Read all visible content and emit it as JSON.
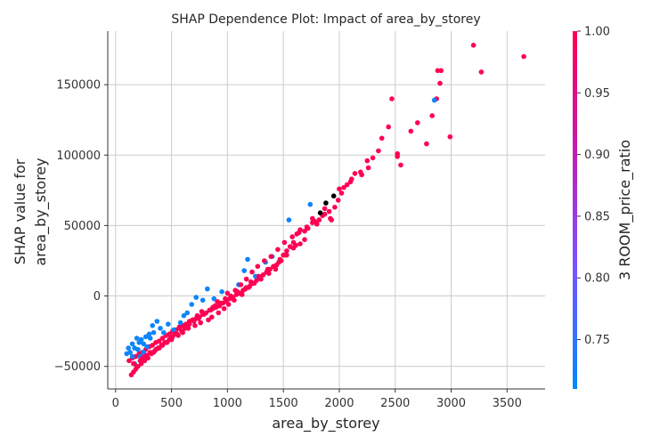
{
  "chart_data": {
    "type": "scatter",
    "title": "SHAP Dependence Plot: Impact of area_by_storey",
    "xlabel": "area_by_storey",
    "ylabel_lines": [
      "SHAP value for",
      "area_by_storey"
    ],
    "xlim": [
      -70,
      3840
    ],
    "ylim": [
      -66000,
      188000
    ],
    "xticks": [
      0,
      500,
      1000,
      1500,
      2000,
      2500,
      3000,
      3500
    ],
    "yticks": [
      -50000,
      0,
      50000,
      100000,
      150000
    ],
    "ytick_labels": [
      "−50000",
      "0",
      "50000",
      "100000",
      "150000"
    ],
    "grid": true,
    "colorbar": {
      "label": "3 ROOM_price_ratio",
      "range": [
        0.71,
        1.0
      ],
      "ticks": [
        0.75,
        0.8,
        0.85,
        0.9,
        0.95,
        1.0
      ],
      "tick_labels": [
        "0.75",
        "0.80",
        "0.85",
        "0.90",
        "0.95",
        "1.00"
      ],
      "colors": [
        "#008afb",
        "#7c52ff",
        "#c61ab0",
        "#ff0052"
      ]
    },
    "x": [
      3650,
      3200,
      3270,
      2880,
      2910,
      2900,
      2870,
      2830,
      2990,
      2780,
      2700,
      2640,
      2520,
      2470,
      2440,
      2380,
      2520,
      2550,
      2350,
      2300,
      2260,
      2190,
      2140,
      2110,
      2070,
      2040,
      2020,
      1990,
      1960,
      1920,
      1870,
      1820,
      1800,
      1760,
      1720,
      1690,
      1650,
      1620,
      1590,
      1560,
      1530,
      1500,
      1470,
      1440,
      1410,
      1380,
      1350,
      1320,
      1290,
      1260,
      1230,
      1200,
      1170,
      1140,
      1110,
      1080,
      1050,
      1020,
      990,
      960,
      930,
      900,
      870,
      840,
      810,
      780,
      750,
      720,
      690,
      660,
      630,
      600,
      570,
      540,
      510,
      480,
      450,
      420,
      390,
      360,
      330,
      300,
      270,
      240,
      210,
      180,
      150,
      120,
      2850,
      1740,
      1550,
      1400,
      1340,
      1250,
      1180,
      1150,
      1100,
      950,
      880,
      820,
      780,
      720,
      680,
      640,
      610,
      580,
      520,
      470,
      430,
      400,
      370,
      330,
      300,
      270,
      250,
      230,
      210,
      190,
      170,
      150,
      130,
      115,
      100,
      1930,
      1870,
      1780,
      1690,
      1610,
      1520,
      1460,
      1430,
      1370,
      1300,
      1240,
      1190,
      1130,
      1060,
      1010,
      970,
      920,
      860,
      830,
      760,
      710,
      650,
      600,
      560,
      500,
      460,
      420,
      380,
      350,
      320,
      290,
      260,
      230,
      200,
      180,
      160,
      140,
      250,
      280,
      310,
      340,
      220,
      200,
      170,
      150,
      1650,
      1590,
      1530,
      1480,
      1360,
      1280,
      1210,
      1160,
      1090,
      1030,
      980,
      940,
      890,
      850,
      790,
      740,
      700,
      660,
      620,
      590,
      550,
      510,
      480,
      440,
      410,
      360,
      310,
      280,
      240,
      220,
      190,
      160,
      1910,
      1850,
      1760,
      1710,
      1640,
      1580,
      1510,
      1450,
      1390,
      1330,
      1270,
      1220,
      1170,
      1120,
      1070,
      1000,
      910,
      870,
      770,
      730,
      690,
      630,
      570,
      530,
      490,
      450,
      390,
      340,
      260,
      2000,
      2100,
      2200,
      2250,
      1950,
      1880,
      1830
    ],
    "y": [
      170000,
      178000,
      159000,
      160000,
      160000,
      151000,
      140000,
      128000,
      113000,
      108000,
      123000,
      117000,
      99000,
      140000,
      120000,
      112000,
      101000,
      93000,
      103000,
      98000,
      91000,
      88000,
      87000,
      83000,
      79000,
      77000,
      73000,
      68000,
      63000,
      55000,
      58000,
      54000,
      51000,
      55000,
      48000,
      46000,
      47000,
      44000,
      38000,
      35000,
      32000,
      29000,
      26000,
      22000,
      21000,
      19000,
      17000,
      15000,
      13000,
      11000,
      9000,
      7000,
      6000,
      4000,
      2000,
      1000,
      -1000,
      -2000,
      -4000,
      -5000,
      -7000,
      -8000,
      -9000,
      -10000,
      -12000,
      -13000,
      -15000,
      -16000,
      -17000,
      -18000,
      -20000,
      -21000,
      -22000,
      -24000,
      -25000,
      -27000,
      -28000,
      -30000,
      -32000,
      -33000,
      -35000,
      -36000,
      -38000,
      -40000,
      -41000,
      -43000,
      -44000,
      -46000,
      139000,
      65000,
      54000,
      28000,
      24000,
      14000,
      26000,
      18000,
      8000,
      3000,
      -2000,
      5000,
      -3000,
      -1000,
      -6000,
      -12000,
      -14000,
      -19000,
      -24000,
      -20000,
      -26000,
      -23000,
      -18000,
      -21000,
      -27000,
      -29000,
      -34000,
      -31000,
      -33000,
      -30000,
      -37000,
      -34000,
      -40000,
      -37000,
      -41000,
      54000,
      62000,
      53000,
      40000,
      36000,
      29000,
      24000,
      19000,
      16000,
      12000,
      9000,
      6000,
      1000,
      -3000,
      -6000,
      -9000,
      -12000,
      -15000,
      -17000,
      -19000,
      -21000,
      -23000,
      -26000,
      -28000,
      -31000,
      -33000,
      -35000,
      -37000,
      -39000,
      -41000,
      -44000,
      -46000,
      -48000,
      -50000,
      -52000,
      -54000,
      -56000,
      -40000,
      -36000,
      -30000,
      -26000,
      -43000,
      -38000,
      -48000,
      -43000,
      37000,
      34000,
      29000,
      25000,
      19000,
      14000,
      10000,
      5000,
      3000,
      0,
      -2000,
      -5000,
      -7000,
      -10000,
      -13000,
      -16000,
      -18000,
      -20000,
      -23000,
      -25000,
      -27000,
      -29000,
      -31000,
      -33000,
      -35000,
      -38000,
      -40000,
      -42000,
      -44000,
      -46000,
      -50000,
      -48000,
      60000,
      57000,
      52000,
      49000,
      45000,
      42000,
      38000,
      33000,
      28000,
      25000,
      21000,
      17000,
      12000,
      8000,
      4000,
      2000,
      -4000,
      -8000,
      -11000,
      -14000,
      -17000,
      -20000,
      -23000,
      -27000,
      -30000,
      -33000,
      -37000,
      -40000,
      -43000,
      76000,
      81000,
      86000,
      96000,
      71000,
      66000,
      59000
    ],
    "c": [
      1.0,
      1.0,
      1.0,
      1.0,
      1.0,
      1.0,
      1.0,
      1.0,
      1.0,
      1.0,
      1.0,
      1.0,
      1.0,
      1.0,
      1.0,
      1.0,
      1.0,
      1.0,
      1.0,
      1.0,
      1.0,
      1.0,
      1.0,
      1.0,
      1.0,
      1.0,
      1.0,
      1.0,
      1.0,
      1.0,
      1.0,
      1.0,
      1.0,
      1.0,
      1.0,
      1.0,
      1.0,
      1.0,
      1.0,
      1.0,
      1.0,
      1.0,
      1.0,
      1.0,
      1.0,
      1.0,
      1.0,
      1.0,
      1.0,
      1.0,
      1.0,
      1.0,
      1.0,
      1.0,
      1.0,
      1.0,
      1.0,
      1.0,
      1.0,
      1.0,
      1.0,
      1.0,
      1.0,
      1.0,
      1.0,
      1.0,
      1.0,
      1.0,
      1.0,
      1.0,
      1.0,
      1.0,
      1.0,
      1.0,
      1.0,
      1.0,
      1.0,
      1.0,
      1.0,
      1.0,
      1.0,
      1.0,
      1.0,
      1.0,
      1.0,
      1.0,
      1.0,
      1.0,
      0.72,
      0.72,
      0.72,
      0.72,
      0.72,
      0.72,
      0.72,
      0.72,
      0.72,
      0.72,
      0.72,
      0.72,
      0.72,
      0.72,
      0.72,
      0.72,
      0.72,
      0.72,
      0.72,
      0.72,
      0.72,
      0.72,
      0.72,
      0.72,
      0.72,
      0.72,
      0.72,
      0.72,
      0.72,
      0.72,
      0.72,
      0.72,
      0.72,
      0.72,
      0.72,
      1.0,
      1.0,
      1.0,
      1.0,
      1.0,
      1.0,
      1.0,
      1.0,
      1.0,
      1.0,
      1.0,
      1.0,
      1.0,
      1.0,
      1.0,
      1.0,
      1.0,
      1.0,
      1.0,
      1.0,
      1.0,
      1.0,
      1.0,
      1.0,
      1.0,
      1.0,
      1.0,
      1.0,
      1.0,
      1.0,
      1.0,
      1.0,
      1.0,
      1.0,
      1.0,
      1.0,
      1.0,
      0.72,
      0.72,
      0.72,
      0.72,
      0.72,
      0.72,
      0.72,
      0.72,
      1.0,
      1.0,
      1.0,
      1.0,
      1.0,
      1.0,
      1.0,
      1.0,
      1.0,
      1.0,
      1.0,
      1.0,
      1.0,
      1.0,
      1.0,
      1.0,
      1.0,
      1.0,
      1.0,
      1.0,
      1.0,
      1.0,
      1.0,
      1.0,
      1.0,
      1.0,
      1.0,
      1.0,
      1.0,
      1.0,
      1.0,
      1.0,
      1.0,
      1.0,
      1.0,
      1.0,
      1.0,
      1.0,
      1.0,
      1.0,
      1.0,
      1.0,
      1.0,
      1.0,
      1.0,
      1.0,
      1.0,
      1.0,
      1.0,
      1.0,
      1.0,
      1.0,
      1.0,
      1.0,
      1.0,
      1.0,
      1.0,
      1.0,
      1.0,
      1.0,
      1.0,
      1.0,
      1.0,
      1.0,
      1.0
    ]
  }
}
